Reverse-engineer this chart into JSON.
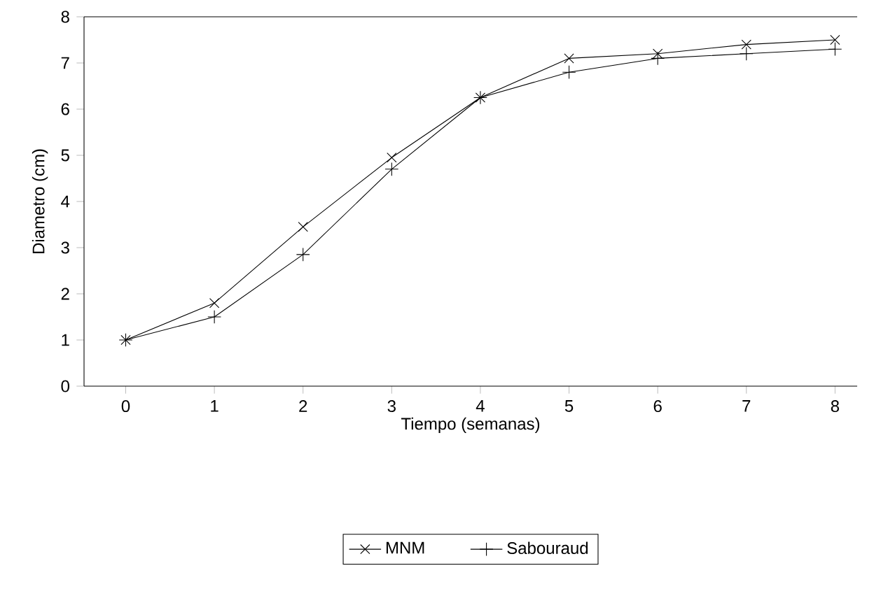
{
  "chart_data": {
    "type": "line",
    "xlabel": "Tiempo (semanas)",
    "ylabel": "Diametro (cm)",
    "x": [
      0,
      1,
      2,
      3,
      4,
      5,
      6,
      7,
      8
    ],
    "series": [
      {
        "name": "MNM",
        "color": "#000000",
        "marker": "cross",
        "values": [
          1,
          1.8,
          3.45,
          4.95,
          6.25,
          7.1,
          7.2,
          7.4,
          7.5
        ]
      },
      {
        "name": "Sabouraud",
        "color": "#000000",
        "marker": "plus",
        "values": [
          1,
          1.5,
          2.85,
          4.7,
          6.25,
          6.8,
          7.1,
          7.2,
          7.3
        ]
      }
    ],
    "xlim": [
      -0.47,
      8.25
    ],
    "ylim": [
      0,
      8
    ],
    "xticks": [
      0,
      1,
      2,
      3,
      4,
      5,
      6,
      7,
      8
    ],
    "yticks": [
      0,
      1,
      2,
      3,
      4,
      5,
      6,
      7,
      8
    ],
    "grid": false,
    "legend": "bottom",
    "line_style": "solid"
  }
}
